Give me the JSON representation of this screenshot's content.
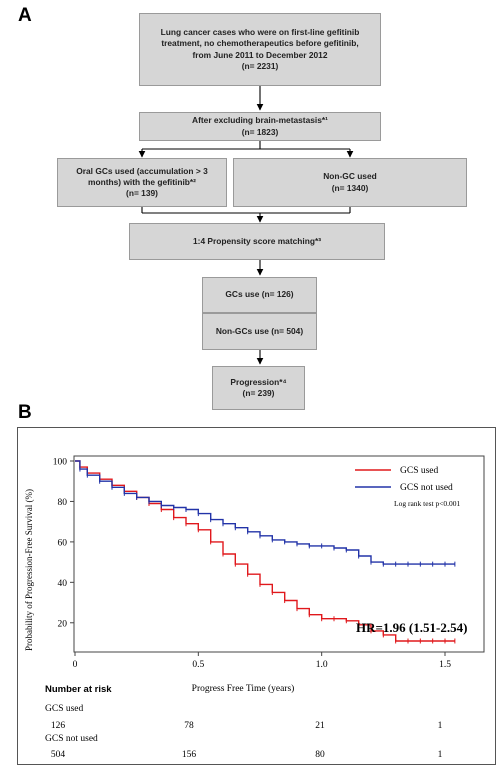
{
  "panel_a": {
    "letter": "A",
    "boxes": {
      "cohort": {
        "lines": [
          "Lung cancer cases who were on first-line gefitinib",
          "treatment, no chemotherapeutics before gefitinib,",
          "from June 2011 to December 2012",
          "(n= 2231)"
        ]
      },
      "exclusion": {
        "lines": [
          "After excluding  brain-metastasis*¹",
          "(n=  1823)"
        ]
      },
      "gc_used": {
        "lines": [
          "Oral GCs used (accumulation  > 3",
          "months) with the gefitinib*²",
          "(n= 139)"
        ]
      },
      "non_gc_used": {
        "lines": [
          "Non-GC used",
          "(n= 1340)"
        ]
      },
      "matching": {
        "lines": [
          "1:4 Propensity score matching*³"
        ]
      },
      "gcs_use": {
        "lines": [
          "GCs use (n= 126)"
        ]
      },
      "non_gcs_use": {
        "lines": [
          "Non-GCs use (n= 504)"
        ]
      },
      "progression": {
        "lines": [
          "Progression*⁴",
          "(n= 239)"
        ]
      }
    }
  },
  "panel_b": {
    "letter": "B",
    "hr_text": "HR=1.96 (1.51-2.54)",
    "legend": {
      "items": [
        {
          "label": "GCS used",
          "color": "#e0181c"
        },
        {
          "label": "GCS not used",
          "color": "#2233a8"
        }
      ],
      "note": "Log rank test p<0.001"
    },
    "risk_table": {
      "title": "Number at risk",
      "rows": [
        {
          "label": "GCS used",
          "values": [
            "126",
            "78",
            "21",
            "1"
          ]
        },
        {
          "label": "GCS not used",
          "values": [
            "504",
            "156",
            "80",
            "1"
          ]
        }
      ]
    }
  },
  "chart_data": {
    "type": "line",
    "xlabel": "Progress Free Time (years)",
    "ylabel": "Probability of Progression-Free Survival (%)",
    "xlim": [
      0,
      1.5
    ],
    "ylim": [
      10,
      100
    ],
    "x_ticks": [
      "0",
      "0.5",
      "1.0",
      "1.5"
    ],
    "y_ticks": [
      "20",
      "40",
      "60",
      "80",
      "100"
    ],
    "grid": false,
    "legend_position": "top-right",
    "series": [
      {
        "name": "GCS used",
        "color": "#e0181c",
        "x": [
          0,
          0.02,
          0.05,
          0.1,
          0.15,
          0.2,
          0.25,
          0.3,
          0.35,
          0.4,
          0.45,
          0.5,
          0.55,
          0.6,
          0.65,
          0.7,
          0.75,
          0.8,
          0.85,
          0.9,
          0.95,
          1.0,
          1.05,
          1.1,
          1.15,
          1.2,
          1.25,
          1.3,
          1.35,
          1.4,
          1.45,
          1.5,
          1.54
        ],
        "y": [
          100,
          97,
          94,
          91,
          88,
          85,
          82,
          79,
          76,
          72,
          69,
          66,
          60,
          54,
          49,
          44,
          39,
          35,
          31,
          27,
          24,
          22,
          22,
          21,
          19,
          16,
          14,
          11,
          11,
          11,
          11,
          11,
          11
        ]
      },
      {
        "name": "GCS not used",
        "color": "#2233a8",
        "x": [
          0,
          0.02,
          0.05,
          0.1,
          0.15,
          0.2,
          0.25,
          0.3,
          0.35,
          0.4,
          0.45,
          0.5,
          0.55,
          0.6,
          0.65,
          0.7,
          0.75,
          0.8,
          0.85,
          0.9,
          0.95,
          1.0,
          1.05,
          1.1,
          1.15,
          1.2,
          1.25,
          1.3,
          1.35,
          1.4,
          1.45,
          1.5,
          1.54
        ],
        "y": [
          100,
          96,
          93,
          90,
          87,
          84,
          82,
          80,
          78,
          77,
          76,
          74,
          71,
          69,
          67,
          65,
          63,
          61,
          60,
          59,
          58,
          58,
          57,
          56,
          53,
          50,
          49,
          49,
          49,
          49,
          49,
          49,
          49
        ]
      }
    ]
  }
}
